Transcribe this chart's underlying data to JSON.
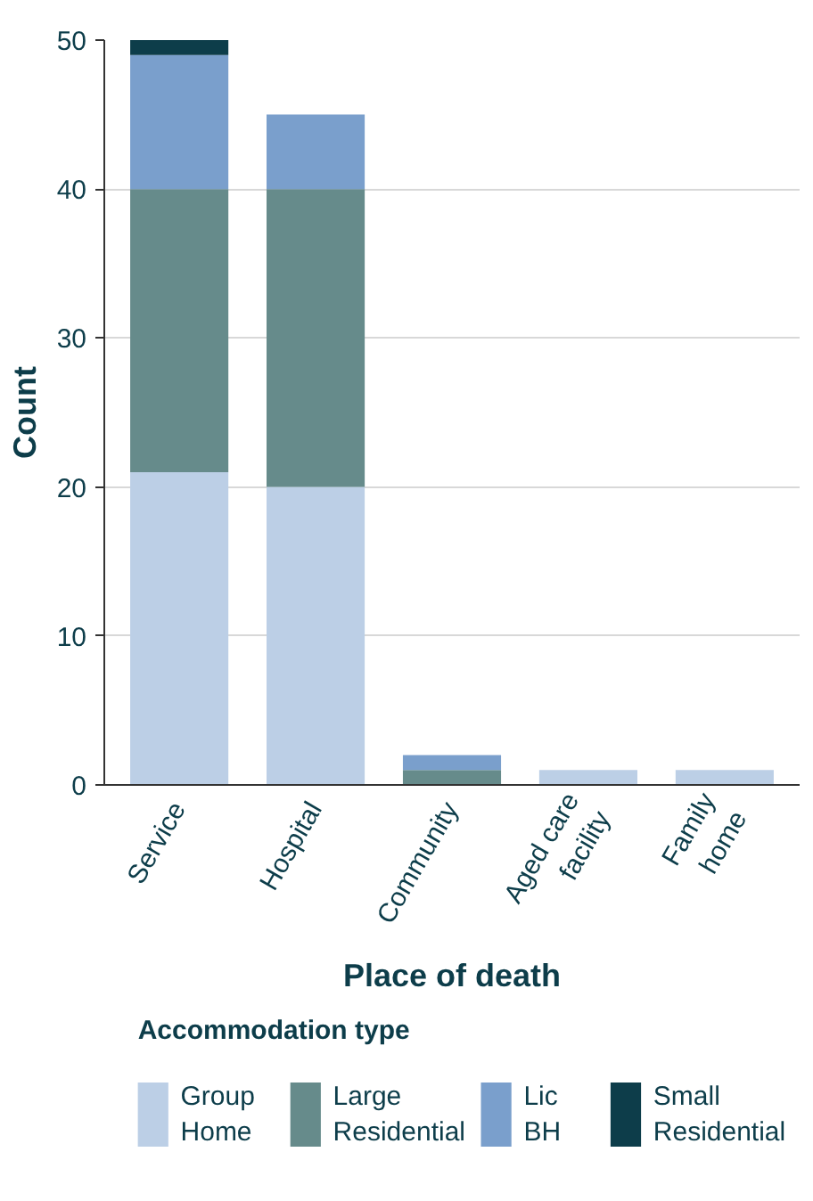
{
  "chart_data": {
    "type": "bar",
    "stacked": true,
    "categories": [
      "Service",
      "Hospital",
      "Community",
      "Aged care facility",
      "Family home"
    ],
    "series": [
      {
        "name": "Group Home",
        "color": "#bccfe6",
        "values": [
          21,
          20,
          0,
          1,
          1
        ]
      },
      {
        "name": "Large Residential",
        "color": "#668b8b",
        "values": [
          19,
          20,
          1,
          0,
          0
        ]
      },
      {
        "name": "Lic BH",
        "color": "#7a9fcc",
        "values": [
          9,
          5,
          1,
          0,
          0
        ]
      },
      {
        "name": "Small Residential",
        "color": "#0d3d4a",
        "values": [
          1,
          0,
          0,
          0,
          0
        ]
      }
    ],
    "xlabel": "Place of death",
    "ylabel": "Count",
    "legend_title": "Accommodation type",
    "legend": "bottom",
    "ylim": [
      0,
      50
    ],
    "yticks": [
      0,
      10,
      20,
      30,
      40,
      50
    ],
    "grid": "y"
  }
}
